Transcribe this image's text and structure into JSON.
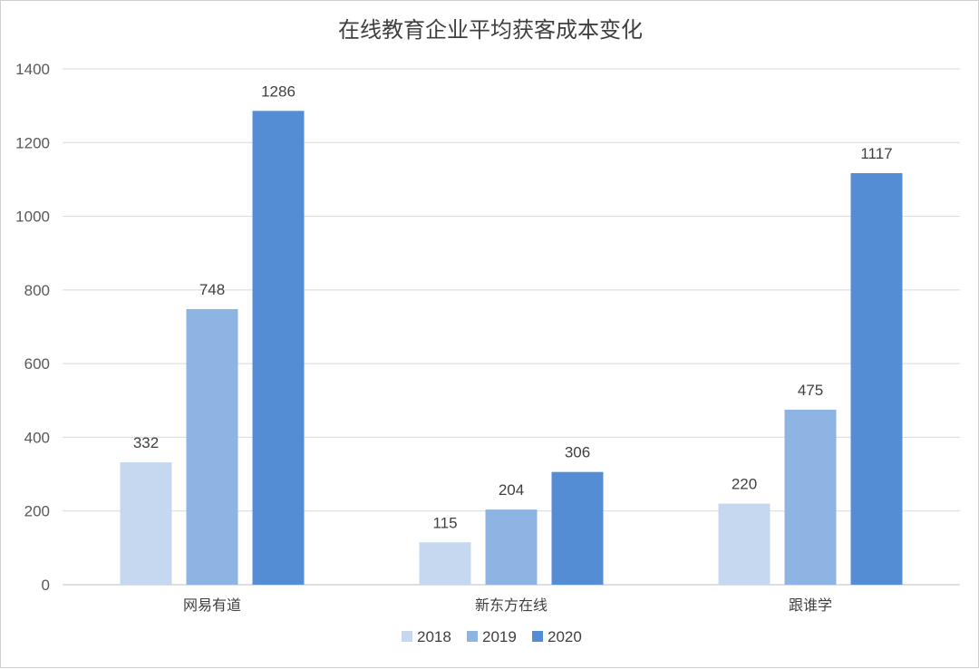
{
  "chart_data": {
    "type": "bar",
    "title": "在线教育企业平均获客成本变化",
    "categories": [
      "网易有道",
      "新东方在线",
      "跟谁学"
    ],
    "series": [
      {
        "name": "2018",
        "values": [
          332,
          115,
          220
        ],
        "color": "#c5d8ef"
      },
      {
        "name": "2019",
        "values": [
          748,
          204,
          475
        ],
        "color": "#8eb4e3"
      },
      {
        "name": "2020",
        "values": [
          1286,
          306,
          1117
        ],
        "color": "#548dd4"
      }
    ],
    "ylim": [
      0,
      1400
    ],
    "yticks": [
      0,
      200,
      400,
      600,
      800,
      1000,
      1200,
      1400
    ],
    "grid": true,
    "legend": "bottom",
    "xlabel": "",
    "ylabel": ""
  }
}
